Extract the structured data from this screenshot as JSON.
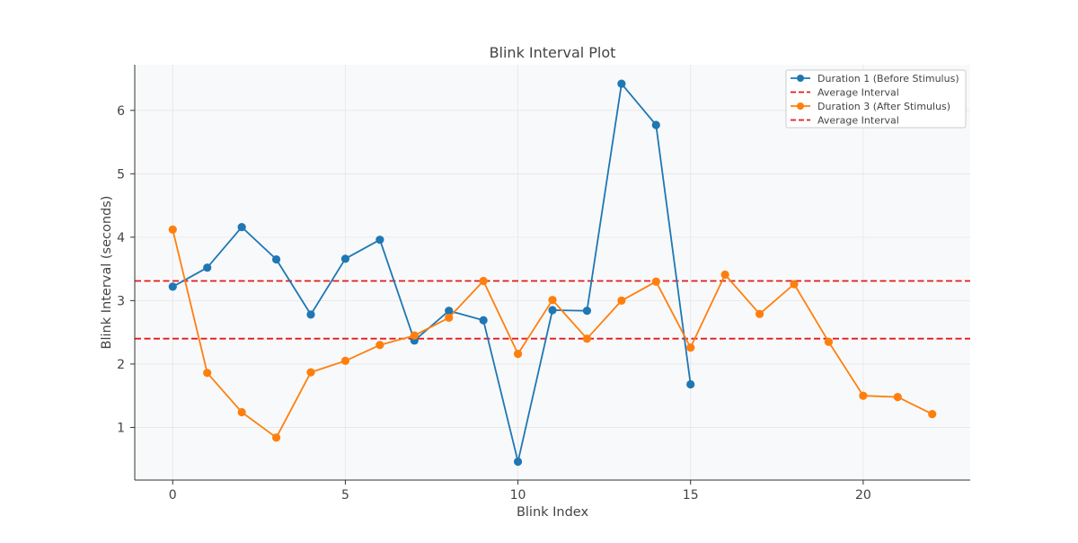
{
  "chart_data": {
    "type": "line",
    "title": "Blink Interval Plot",
    "xlabel": "Blink Index",
    "ylabel": "Blink Interval (seconds)",
    "xlim": [
      -1.1,
      23.1
    ],
    "ylim": [
      0.17,
      6.72
    ],
    "xticks": [
      0,
      5,
      10,
      15,
      20
    ],
    "yticks": [
      1,
      2,
      3,
      4,
      5,
      6
    ],
    "grid": true,
    "legend_position": "top-right",
    "series": [
      {
        "name": "Duration 1 (Before Stimulus)",
        "color": "#1f77b4",
        "x": [
          0,
          1,
          2,
          3,
          4,
          5,
          6,
          7,
          8,
          9,
          10,
          11,
          12,
          13,
          14,
          15
        ],
        "y": [
          3.22,
          3.52,
          4.16,
          3.65,
          2.78,
          3.66,
          3.96,
          2.37,
          2.84,
          2.69,
          0.46,
          2.85,
          2.84,
          6.42,
          5.77,
          1.68
        ]
      },
      {
        "name": "Duration 3 (After Stimulus)",
        "color": "#ff7f0e",
        "x": [
          0,
          1,
          2,
          3,
          4,
          5,
          6,
          7,
          8,
          9,
          10,
          11,
          12,
          13,
          14,
          15,
          16,
          17,
          18,
          19,
          20,
          21,
          22
        ],
        "y": [
          4.12,
          1.86,
          1.24,
          0.84,
          1.87,
          2.05,
          2.3,
          2.45,
          2.73,
          3.31,
          2.16,
          3.01,
          2.4,
          3.0,
          3.3,
          2.26,
          3.41,
          2.79,
          3.26,
          2.35,
          1.5,
          1.48,
          1.21
        ]
      }
    ],
    "reference_lines": [
      {
        "name": "Average Interval",
        "value": 3.31,
        "color": "#e31a1c",
        "style": "dashed"
      },
      {
        "name": "Average Interval",
        "value": 2.4,
        "color": "#e31a1c",
        "style": "dashed"
      }
    ],
    "legend_entries": [
      {
        "label": "Duration 1 (Before Stimulus)",
        "kind": "line-marker",
        "color": "#1f77b4"
      },
      {
        "label": "Average Interval",
        "kind": "dashed",
        "color": "#e31a1c"
      },
      {
        "label": "Duration 3 (After Stimulus)",
        "kind": "line-marker",
        "color": "#ff7f0e"
      },
      {
        "label": "Average Interval",
        "kind": "dashed",
        "color": "#e31a1c"
      }
    ]
  }
}
